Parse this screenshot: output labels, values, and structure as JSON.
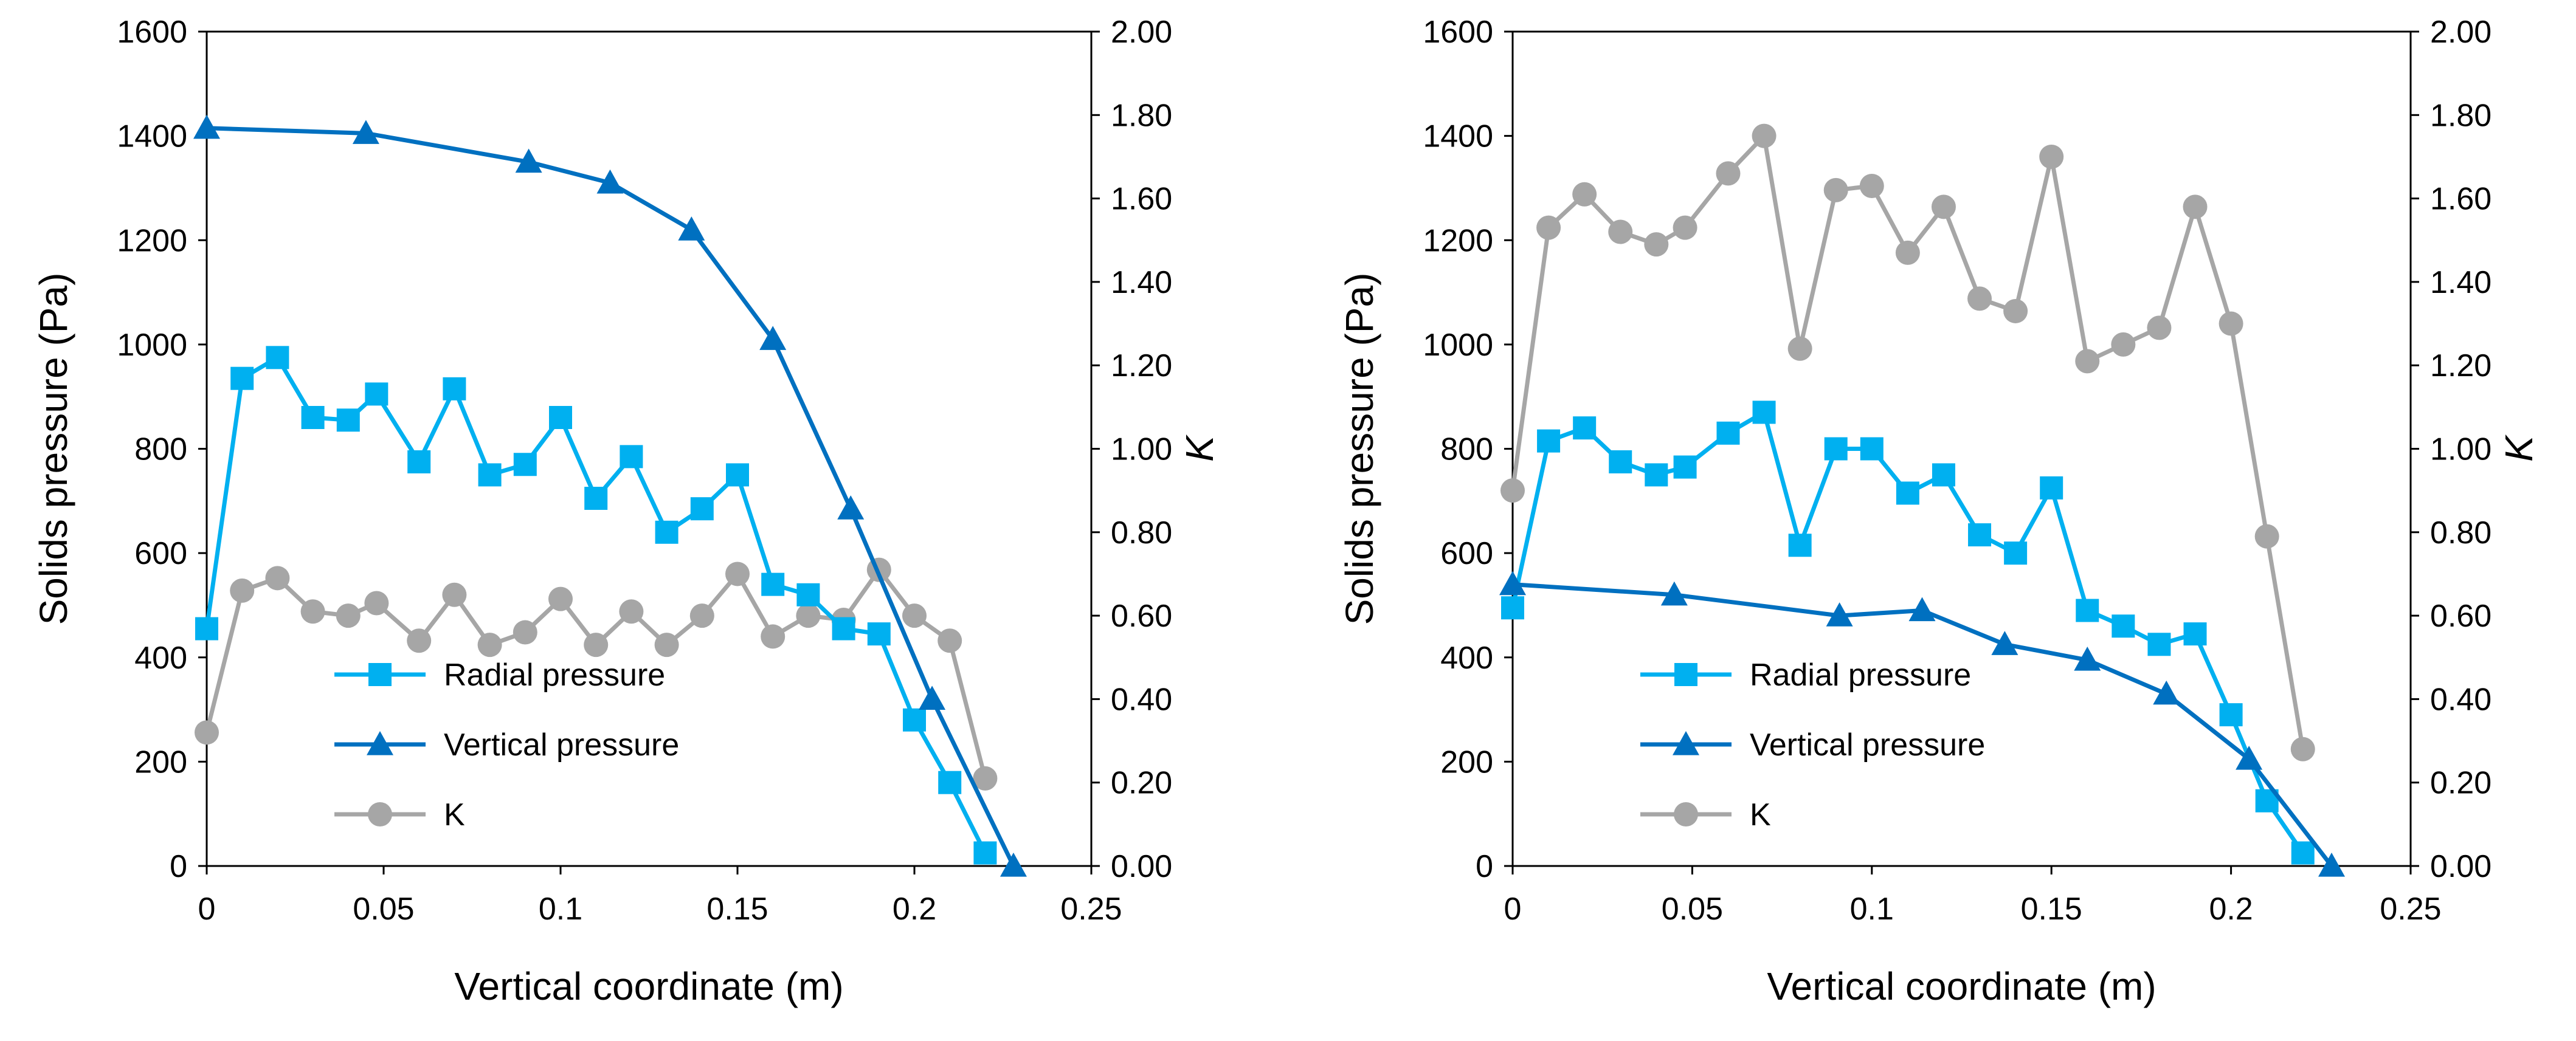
{
  "chart_data": [
    {
      "type": "line",
      "panel": "left",
      "xlabel": "Vertical coordinate (m)",
      "ylabel": "Solids pressure (Pa)",
      "y2label": "K",
      "xlim": [
        0,
        0.25
      ],
      "ylim": [
        0,
        1600
      ],
      "y2lim": [
        0,
        2.0
      ],
      "xticks": [
        "0",
        "0.05",
        "0.1",
        "0.15",
        "0.2",
        "0.25"
      ],
      "yticks": [
        "0",
        "200",
        "400",
        "600",
        "800",
        "1000",
        "1200",
        "1400",
        "1600"
      ],
      "y2ticks": [
        "0.00",
        "0.20",
        "0.40",
        "0.60",
        "0.80",
        "1.00",
        "1.20",
        "1.40",
        "1.60",
        "1.80",
        "2.00"
      ],
      "grid": false,
      "legend_position": "bottom-left",
      "series": [
        {
          "name": "Radial pressure",
          "axis": "left",
          "marker": "square",
          "color": "#00B0F0",
          "x": [
            0,
            0.01,
            0.02,
            0.03,
            0.04,
            0.048,
            0.06,
            0.07,
            0.08,
            0.09,
            0.1,
            0.11,
            0.12,
            0.13,
            0.14,
            0.15,
            0.16,
            0.17,
            0.18,
            0.19,
            0.2,
            0.21,
            0.22
          ],
          "y": [
            455,
            935,
            975,
            860,
            855,
            905,
            775,
            915,
            750,
            770,
            860,
            705,
            785,
            640,
            685,
            750,
            540,
            520,
            455,
            445,
            280,
            160,
            25
          ]
        },
        {
          "name": "Vertical pressure",
          "axis": "left",
          "marker": "triangle",
          "color": "#0070C0",
          "x": [
            0,
            0.045,
            0.091,
            0.114,
            0.137,
            0.16,
            0.182,
            0.205,
            0.228
          ],
          "y": [
            1415,
            1405,
            1350,
            1310,
            1220,
            1010,
            685,
            320,
            0
          ]
        },
        {
          "name": "K",
          "axis": "right",
          "marker": "circle",
          "color": "#A6A6A6",
          "x": [
            0,
            0.01,
            0.02,
            0.03,
            0.04,
            0.048,
            0.06,
            0.07,
            0.08,
            0.09,
            0.1,
            0.11,
            0.12,
            0.13,
            0.14,
            0.15,
            0.16,
            0.17,
            0.18,
            0.19,
            0.2,
            0.21,
            0.22
          ],
          "y": [
            0.32,
            0.66,
            0.69,
            0.61,
            0.6,
            0.63,
            0.54,
            0.65,
            0.53,
            0.56,
            0.64,
            0.53,
            0.61,
            0.53,
            0.6,
            0.7,
            0.55,
            0.6,
            0.59,
            0.71,
            0.6,
            0.54,
            0.21
          ]
        }
      ]
    },
    {
      "type": "line",
      "panel": "right",
      "xlabel": "Vertical coordinate (m)",
      "ylabel": "Solids pressure (Pa)",
      "y2label": "K",
      "xlim": [
        0,
        0.25
      ],
      "ylim": [
        0,
        1600
      ],
      "y2lim": [
        0,
        2.0
      ],
      "xticks": [
        "0",
        "0.05",
        "0.1",
        "0.15",
        "0.2",
        "0.25"
      ],
      "yticks": [
        "0",
        "200",
        "400",
        "600",
        "800",
        "1000",
        "1200",
        "1400",
        "1600"
      ],
      "y2ticks": [
        "0.00",
        "0.20",
        "0.40",
        "0.60",
        "0.80",
        "1.00",
        "1.20",
        "1.40",
        "1.60",
        "1.80",
        "2.00"
      ],
      "grid": false,
      "legend_position": "bottom-left",
      "series": [
        {
          "name": "Radial pressure",
          "axis": "left",
          "marker": "square",
          "color": "#00B0F0",
          "x": [
            0,
            0.01,
            0.02,
            0.03,
            0.04,
            0.048,
            0.06,
            0.07,
            0.08,
            0.09,
            0.1,
            0.11,
            0.12,
            0.13,
            0.14,
            0.15,
            0.16,
            0.17,
            0.18,
            0.19,
            0.2,
            0.21,
            0.22
          ],
          "y": [
            495,
            815,
            840,
            775,
            750,
            765,
            830,
            870,
            615,
            800,
            800,
            715,
            750,
            635,
            600,
            725,
            490,
            460,
            425,
            445,
            290,
            125,
            25
          ]
        },
        {
          "name": "Vertical pressure",
          "axis": "left",
          "marker": "triangle",
          "color": "#0070C0",
          "x": [
            0,
            0.045,
            0.091,
            0.114,
            0.137,
            0.16,
            0.182,
            0.205,
            0.228
          ],
          "y": [
            540,
            520,
            480,
            490,
            425,
            395,
            330,
            205,
            0
          ]
        },
        {
          "name": "K",
          "axis": "right",
          "marker": "circle",
          "color": "#A6A6A6",
          "x": [
            0,
            0.01,
            0.02,
            0.03,
            0.04,
            0.048,
            0.06,
            0.07,
            0.08,
            0.09,
            0.1,
            0.11,
            0.12,
            0.13,
            0.14,
            0.15,
            0.16,
            0.17,
            0.18,
            0.19,
            0.2,
            0.21,
            0.22
          ],
          "y": [
            0.9,
            1.53,
            1.61,
            1.52,
            1.49,
            1.53,
            1.66,
            1.75,
            1.24,
            1.62,
            1.63,
            1.47,
            1.58,
            1.36,
            1.33,
            1.7,
            1.21,
            1.25,
            1.29,
            1.58,
            1.3,
            0.79,
            0.28
          ]
        }
      ]
    }
  ]
}
